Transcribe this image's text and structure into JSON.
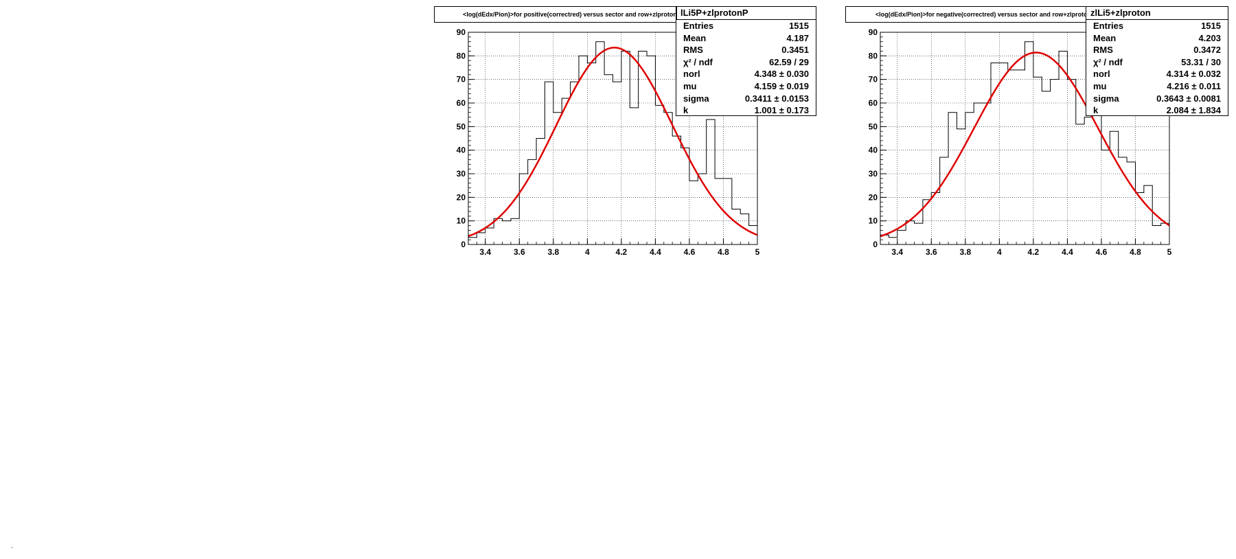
{
  "chart_data": [
    {
      "type": "bar",
      "title": "<log(dEdx/Pion)>for positive(correctred) versus sector and row+zlprotonP",
      "xlim": [
        3.3,
        5.0
      ],
      "ylim": [
        0,
        90
      ],
      "xticks": [
        "3.4",
        "3.6",
        "3.8",
        "4",
        "4.2",
        "4.4",
        "4.6",
        "4.8",
        "5"
      ],
      "yticks": [
        "0",
        "10",
        "20",
        "30",
        "40",
        "50",
        "60",
        "70",
        "80",
        "90"
      ],
      "grid": true,
      "bin_edges": [
        3.3,
        3.35,
        3.4,
        3.45,
        3.5,
        3.55,
        3.6,
        3.65,
        3.7,
        3.75,
        3.8,
        3.85,
        3.9,
        3.95,
        4.0,
        4.05,
        4.1,
        4.15,
        4.2,
        4.25,
        4.3,
        4.35,
        4.4,
        4.45,
        4.5,
        4.55,
        4.6,
        4.65,
        4.7,
        4.75,
        4.8,
        4.85,
        4.9,
        4.95,
        5.0
      ],
      "values": [
        3,
        5,
        7,
        11,
        10,
        11,
        30,
        36,
        45,
        69,
        56,
        62,
        69,
        80,
        77,
        86,
        72,
        69,
        82,
        58,
        82,
        80,
        59,
        56,
        46,
        41,
        27,
        30,
        53,
        28,
        28,
        15,
        13,
        8
      ],
      "fit": {
        "mu": 4.159,
        "sigma": 0.3411,
        "peak": 83.5,
        "k": 1.001
      },
      "fit_color": "#e00000",
      "stats": {
        "name": "lLi5P+zlprotonP",
        "rows": [
          {
            "key": "Entries",
            "value": "1515"
          },
          {
            "key": "Mean",
            "value": "4.187"
          },
          {
            "key": "RMS",
            "value": "0.3451"
          },
          {
            "key": "χ² / ndf",
            "value": "62.59 / 29"
          },
          {
            "key": "norl",
            "value": "4.348 ± 0.030"
          },
          {
            "key": "mu",
            "value": "4.159 ± 0.019"
          },
          {
            "key": "sigma",
            "value": "0.3411 ± 0.0153"
          },
          {
            "key": "k",
            "value": "1.001 ± 0.173"
          }
        ]
      }
    },
    {
      "type": "bar",
      "title": "<log(dEdx/Pion)>for negative(correctred) versus sector and row+zlproton",
      "xlim": [
        3.3,
        5.0
      ],
      "ylim": [
        0,
        90
      ],
      "xticks": [
        "3.4",
        "3.6",
        "3.8",
        "4",
        "4.2",
        "4.4",
        "4.6",
        "4.8",
        "5"
      ],
      "yticks": [
        "0",
        "10",
        "20",
        "30",
        "40",
        "50",
        "60",
        "70",
        "80",
        "90"
      ],
      "grid": true,
      "bin_edges": [
        3.3,
        3.35,
        3.4,
        3.45,
        3.5,
        3.55,
        3.6,
        3.65,
        3.7,
        3.75,
        3.8,
        3.85,
        3.9,
        3.95,
        4.0,
        4.05,
        4.1,
        4.15,
        4.2,
        4.25,
        4.3,
        4.35,
        4.4,
        4.45,
        4.5,
        4.55,
        4.6,
        4.65,
        4.7,
        4.75,
        4.8,
        4.85,
        4.9,
        4.95,
        5.0
      ],
      "values": [
        4,
        3,
        6,
        10,
        9,
        19,
        22,
        37,
        56,
        49,
        56,
        60,
        60,
        77,
        77,
        74,
        74,
        86,
        71,
        65,
        70,
        82,
        70,
        51,
        54,
        55,
        40,
        48,
        37,
        35,
        22,
        25,
        8,
        9
      ],
      "fit": {
        "mu": 4.216,
        "sigma": 0.3643,
        "peak": 81.4,
        "k": 2.084
      },
      "fit_color": "#e00000",
      "stats": {
        "name": "zlLi5+zlproton",
        "rows": [
          {
            "key": "Entries",
            "value": "1515"
          },
          {
            "key": "Mean",
            "value": "4.203"
          },
          {
            "key": "RMS",
            "value": "0.3472"
          },
          {
            "key": "χ² / ndf",
            "value": "53.31 / 30"
          },
          {
            "key": "norl",
            "value": "4.314 ± 0.032"
          },
          {
            "key": "mu",
            "value": "4.216 ± 0.011"
          },
          {
            "key": "sigma",
            "value": "0.3643 ± 0.0081"
          },
          {
            "key": "k",
            "value": "2.084 ± 1.834"
          }
        ]
      }
    }
  ],
  "corner_mark": "."
}
